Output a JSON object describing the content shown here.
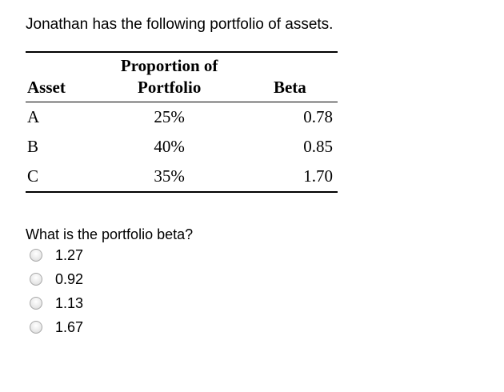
{
  "intro": "Jonathan has the following portfolio of assets.",
  "table": {
    "header": {
      "proportion_line1": "Proportion of",
      "asset": "Asset",
      "proportion_line2": "Portfolio",
      "beta": "Beta"
    },
    "rows": [
      {
        "asset": "A",
        "proportion": "25%",
        "beta": "0.78"
      },
      {
        "asset": "B",
        "proportion": "40%",
        "beta": "0.85"
      },
      {
        "asset": "C",
        "proportion": "35%",
        "beta": "1.70"
      }
    ]
  },
  "question": "What is the portfolio beta?",
  "options": [
    {
      "label": "1.27",
      "selected": false
    },
    {
      "label": "0.92",
      "selected": false
    },
    {
      "label": "1.13",
      "selected": false
    },
    {
      "label": "1.67",
      "selected": false
    }
  ]
}
